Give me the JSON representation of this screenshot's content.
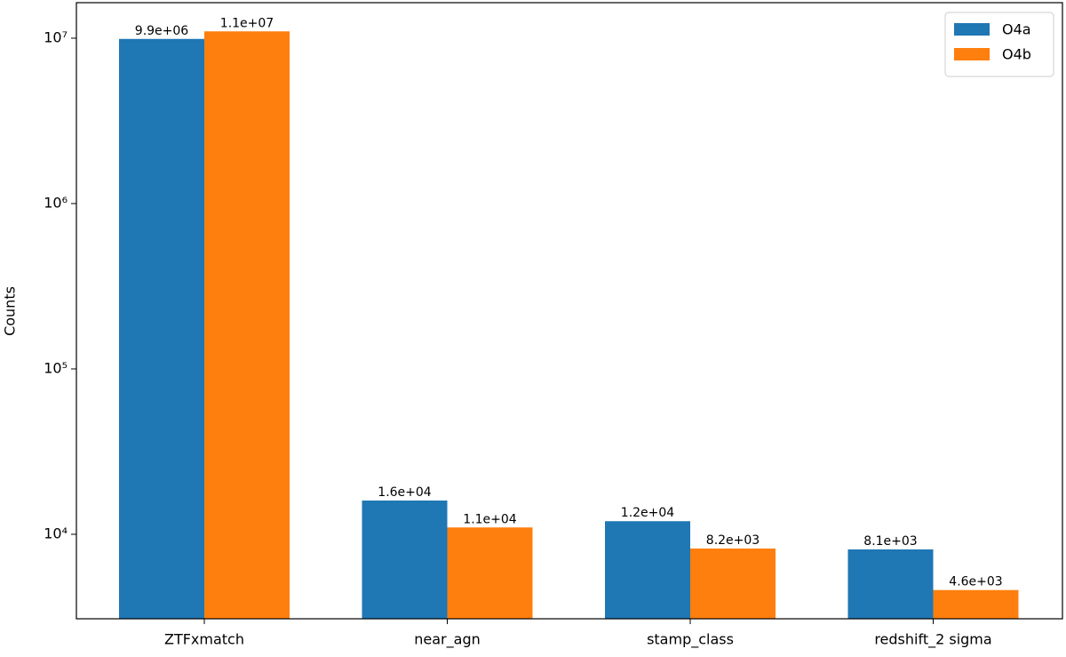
{
  "chart_data": {
    "type": "bar",
    "y_label": "Counts",
    "log_scale": true,
    "legend": "upper right",
    "categories": [
      "ZTFxmatch",
      "near_agn",
      "stamp_class",
      "redshift_2 sigma"
    ],
    "series": [
      {
        "name": "O4a",
        "color": "#1f77b4",
        "values": [
          9900000,
          16000,
          12000,
          8100
        ],
        "value_labels": [
          "9.9e+06",
          "1.6e+04",
          "1.2e+04",
          "8.1e+03"
        ]
      },
      {
        "name": "O4b",
        "color": "#ff7f0e",
        "values": [
          11000000,
          11000,
          8200,
          4600
        ],
        "value_labels": [
          "1.1e+07",
          "1.1e+04",
          "8.2e+03",
          "4.6e+03"
        ]
      }
    ],
    "ylim": [
      3084,
      16400000
    ],
    "yticks": [
      {
        "value": 10000,
        "label": "10⁴"
      },
      {
        "value": 100000,
        "label": "10⁵"
      },
      {
        "value": 1000000,
        "label": "10⁶"
      },
      {
        "value": 10000000,
        "label": "10⁷"
      }
    ]
  }
}
